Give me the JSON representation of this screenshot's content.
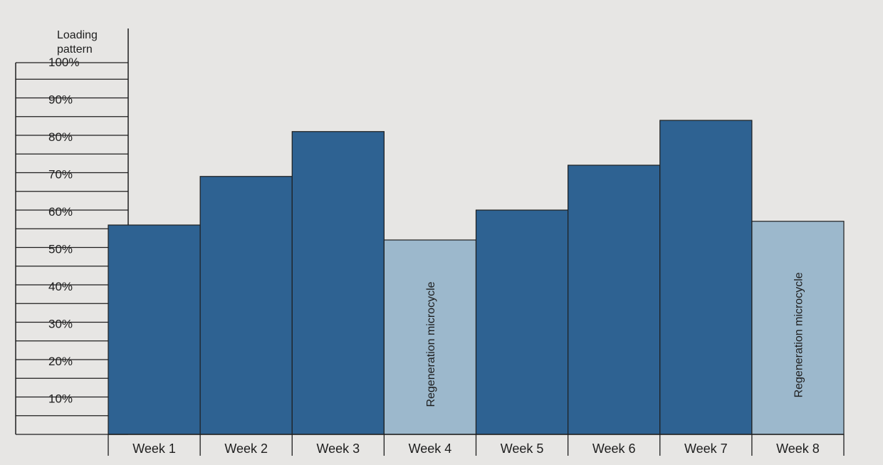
{
  "chart_data": {
    "type": "bar",
    "title": "",
    "axis_header": [
      "Loading",
      "pattern"
    ],
    "scale_labels": [
      "100%",
      "90%",
      "80%",
      "70%",
      "60%",
      "50%",
      "40%",
      "30%",
      "20%",
      "10%"
    ],
    "ylim": [
      0,
      100
    ],
    "unit": "%",
    "categories": [
      "Week 1",
      "Week 2",
      "Week 3",
      "Week 4",
      "Week 5",
      "Week 6",
      "Week 7",
      "Week 8"
    ],
    "values": [
      56,
      69,
      81,
      52,
      60,
      72,
      84,
      57
    ],
    "bar_types": [
      "load",
      "load",
      "load",
      "regeneration",
      "load",
      "load",
      "load",
      "regeneration"
    ],
    "bar_annotations": [
      "",
      "",
      "",
      "Regeneration microcycle",
      "",
      "",
      "",
      "Regeneration microcycle"
    ],
    "colors": {
      "load": "#2e6292",
      "regeneration": "#9cb8cc",
      "background": "#e7e6e4",
      "line": "#1e1e1e"
    },
    "grid": false,
    "legend": "none"
  }
}
